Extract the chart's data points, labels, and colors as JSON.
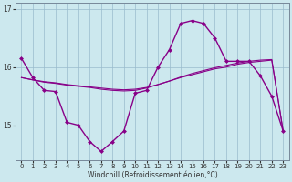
{
  "background_color": "#cce8ee",
  "line_color": "#880088",
  "grid_color": "#99bbcc",
  "xlabel": "Windchill (Refroidissement éolien,°C)",
  "hours": [
    0,
    1,
    2,
    3,
    4,
    5,
    6,
    7,
    8,
    9,
    10,
    11,
    12,
    13,
    14,
    15,
    16,
    17,
    18,
    19,
    20,
    21,
    22,
    23
  ],
  "windchill": [
    16.15,
    15.82,
    15.6,
    15.58,
    15.05,
    15.0,
    14.72,
    14.55,
    14.72,
    14.9,
    15.55,
    15.6,
    16.0,
    16.3,
    16.75,
    16.8,
    16.75,
    16.5,
    16.1,
    16.1,
    16.1,
    15.85,
    15.5,
    14.9
  ],
  "line2": [
    15.82,
    15.78,
    15.75,
    15.73,
    15.7,
    15.68,
    15.66,
    15.64,
    15.62,
    15.61,
    15.62,
    15.65,
    15.7,
    15.76,
    15.82,
    15.87,
    15.92,
    15.97,
    16.0,
    16.05,
    16.08,
    16.1,
    16.12,
    14.9
  ],
  "line3": [
    15.82,
    15.78,
    15.74,
    15.72,
    15.69,
    15.67,
    15.65,
    15.62,
    15.6,
    15.59,
    15.6,
    15.64,
    15.7,
    15.76,
    15.83,
    15.89,
    15.94,
    15.99,
    16.03,
    16.07,
    16.1,
    16.12,
    16.13,
    14.9
  ],
  "ylim_min": 14.4,
  "ylim_max": 17.1,
  "yticks": [
    15,
    16,
    17
  ],
  "marker": "D",
  "markersize": 2.5,
  "linewidth": 1.0,
  "tick_fontsize": 5.0,
  "xlabel_fontsize": 5.5
}
